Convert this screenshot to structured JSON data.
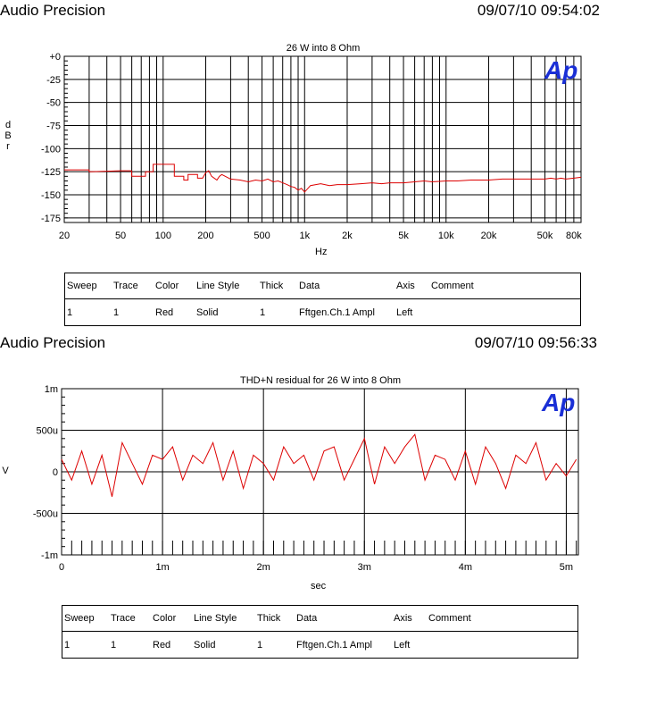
{
  "panels": [
    {
      "header_left": "Audio Precision",
      "header_right": "09/07/10 09:54:02",
      "logo": "Ap",
      "legend": {
        "headers": [
          "Sweep",
          "Trace",
          "Color",
          "Line Style",
          "Thick",
          "Data",
          "Axis",
          "Comment"
        ],
        "row": [
          "1",
          "1",
          "Red",
          "Solid",
          "1",
          "Fftgen.Ch.1 Ampl",
          "Left",
          ""
        ]
      }
    },
    {
      "header_left": "Audio Precision",
      "header_right": "09/07/10 09:56:33",
      "logo": "Ap",
      "legend": {
        "headers": [
          "Sweep",
          "Trace",
          "Color",
          "Line Style",
          "Thick",
          "Data",
          "Axis",
          "Comment"
        ],
        "row": [
          "1",
          "1",
          "Red",
          "Solid",
          "1",
          "Fftgen.Ch.1 Ampl",
          "Left",
          ""
        ]
      }
    }
  ],
  "chart_data": [
    {
      "type": "line",
      "title": "26 W into 8 Ohm",
      "xlabel": "Hz",
      "ylabel": "d B r",
      "xscale": "log",
      "xlim": [
        20,
        90000
      ],
      "ylim": [
        -180,
        0
      ],
      "grid": true,
      "color": "#dd0000",
      "x_ticks": [
        20,
        50,
        100,
        200,
        500,
        1000,
        2000,
        5000,
        10000,
        20000,
        50000,
        80000
      ],
      "x_tick_labels": [
        "20",
        "50",
        "100",
        "200",
        "500",
        "1k",
        "2k",
        "5k",
        "10k",
        "20k",
        "50k",
        "80k"
      ],
      "y_ticks": [
        0,
        -25,
        -50,
        -75,
        -100,
        -125,
        -150,
        -175
      ],
      "y_tick_labels": [
        "+0",
        "-25",
        "-50",
        "-75",
        "-100",
        "-125",
        "-150",
        "-175"
      ],
      "series": [
        {
          "x": [
            20,
            30,
            30,
            50,
            60,
            60,
            75,
            75,
            85,
            85,
            100,
            120,
            120,
            140,
            140,
            150,
            150,
            175,
            175,
            190,
            200,
            210,
            220,
            240,
            250,
            260,
            300,
            350,
            400,
            450,
            500,
            550,
            600,
            650,
            700,
            750,
            800,
            850,
            900,
            950,
            1000,
            1100,
            1200,
            1300,
            1500,
            1700,
            2000,
            2500,
            3000,
            3500,
            4000,
            5000,
            6000,
            7000,
            8000,
            10000,
            12000,
            15000,
            20000,
            25000,
            30000,
            40000,
            50000,
            55000,
            60000,
            65000,
            70000,
            80000,
            90000
          ],
          "y": [
            -123,
            -123,
            -125,
            -124,
            -124,
            -130,
            -130,
            -125,
            -125,
            -117,
            -117,
            -117,
            -130,
            -130,
            -134,
            -134,
            -128,
            -128,
            -132,
            -132,
            -126,
            -124,
            -130,
            -134,
            -130,
            -128,
            -133,
            -134,
            -136,
            -134,
            -135,
            -133,
            -136,
            -135,
            -137,
            -139,
            -141,
            -142,
            -145,
            -143,
            -147,
            -140,
            -139,
            -138,
            -140,
            -139,
            -139,
            -138,
            -137,
            -138,
            -137,
            -137,
            -136,
            -135,
            -136,
            -135,
            -135,
            -134,
            -134,
            -133,
            -133,
            -133,
            -133,
            -132,
            -133,
            -132,
            -133,
            -132,
            -131
          ]
        }
      ]
    },
    {
      "type": "line",
      "title": "THD+N residual for 26 W into 8 Ohm",
      "xlabel": "sec",
      "ylabel": "V",
      "xlim": [
        0,
        0.00512
      ],
      "ylim": [
        -0.001,
        0.001
      ],
      "grid": true,
      "color": "#dd0000",
      "x_ticks": [
        0,
        0.001,
        0.002,
        0.003,
        0.004,
        0.005
      ],
      "x_tick_labels": [
        "0",
        "1m",
        "2m",
        "3m",
        "4m",
        "5m"
      ],
      "y_ticks": [
        0.001,
        0.0005,
        0,
        -0.0005,
        -0.001
      ],
      "y_tick_labels": [
        "1m",
        "500u",
        "0",
        "-500u",
        "-1m"
      ],
      "series": [
        {
          "x": [
            0,
            0.0001,
            0.0002,
            0.0003,
            0.0004,
            0.0005,
            0.0006,
            0.0007,
            0.0008,
            0.0009,
            0.001,
            0.0011,
            0.0012,
            0.0013,
            0.0014,
            0.0015,
            0.0016,
            0.0017,
            0.0018,
            0.0019,
            0.002,
            0.0021,
            0.0022,
            0.0023,
            0.0024,
            0.0025,
            0.0026,
            0.0027,
            0.0028,
            0.0029,
            0.003,
            0.0031,
            0.0032,
            0.0033,
            0.0034,
            0.0035,
            0.0036,
            0.0037,
            0.0038,
            0.0039,
            0.004,
            0.0041,
            0.0042,
            0.0043,
            0.0044,
            0.0045,
            0.0046,
            0.0047,
            0.0048,
            0.0049,
            0.005,
            0.0051
          ],
          "y": [
            0.00015,
            -0.0001,
            0.00025,
            -0.00015,
            0.0002,
            -0.0003,
            0.00035,
            0.0001,
            -0.00015,
            0.0002,
            0.00015,
            0.0003,
            -0.0001,
            0.0002,
            0.0001,
            0.00035,
            -0.0001,
            0.00025,
            -0.0002,
            0.0002,
            0.0001,
            -0.0001,
            0.0003,
            0.0001,
            0.0002,
            -0.0001,
            0.00025,
            0.0003,
            -0.0001,
            0.00015,
            0.0004,
            -0.00015,
            0.0003,
            0.0001,
            0.0003,
            0.00045,
            -0.0001,
            0.0002,
            0.00015,
            -0.0001,
            0.00025,
            -0.00015,
            0.0003,
            0.0001,
            -0.0002,
            0.0002,
            0.0001,
            0.00035,
            -0.0001,
            0.0001,
            -5e-05,
            0.00015
          ]
        }
      ]
    }
  ]
}
